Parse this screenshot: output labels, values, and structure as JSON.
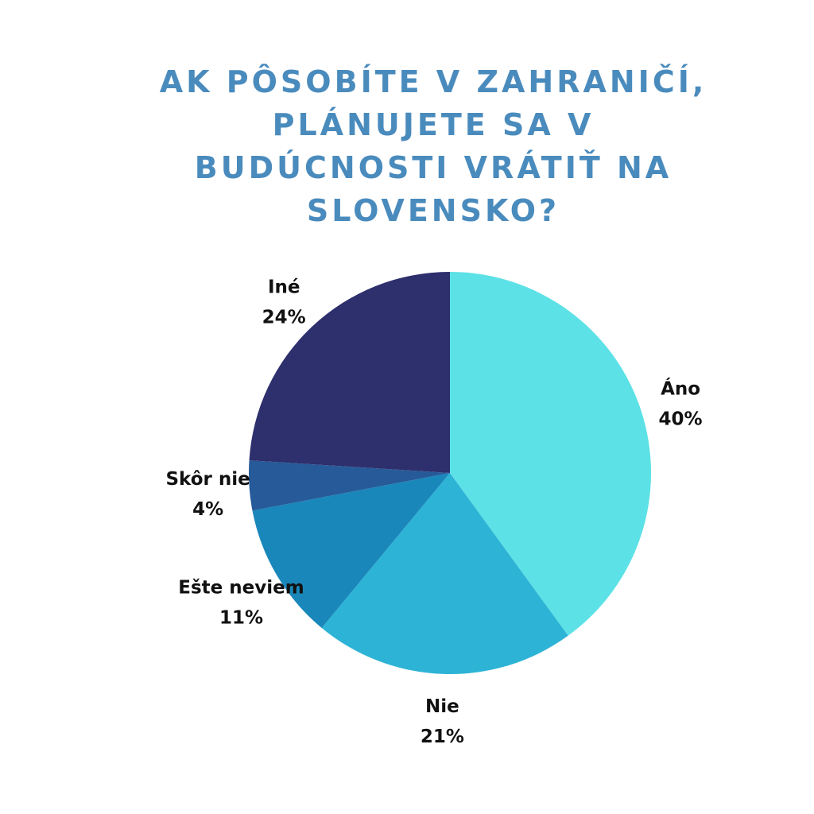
{
  "title": "AK PÔSOBÍTE V ZAHRANIČÍ,\nPLÁNUJETE SA V\nBUDÚCNOSTI VRÁTIŤ NA\nSLOVENSKO?",
  "colors": {
    "title": "#4a8bbd",
    "label_text": "#111111",
    "background": "#ffffff"
  },
  "chart_data": {
    "type": "pie",
    "title": "AK PÔSOBÍTE V ZAHRANIČÍ, PLÁNUJETE SA V BUDÚCNOSTI VRÁTIŤ NA SLOVENSKO?",
    "start_angle_deg": 0,
    "direction": "clockwise",
    "slices": [
      {
        "label": "Áno",
        "value": 40,
        "pct_label": "40%",
        "color": "#5ce1e6"
      },
      {
        "label": "Nie",
        "value": 21,
        "pct_label": "21%",
        "color": "#2db3d5"
      },
      {
        "label": "Ešte neviem",
        "value": 11,
        "pct_label": "11%",
        "color": "#1a87bb"
      },
      {
        "label": "Skôr nie",
        "value": 4,
        "pct_label": "4%",
        "color": "#265a98"
      },
      {
        "label": "Iné",
        "value": 24,
        "pct_label": "24%",
        "color": "#2e2f6d"
      }
    ]
  }
}
